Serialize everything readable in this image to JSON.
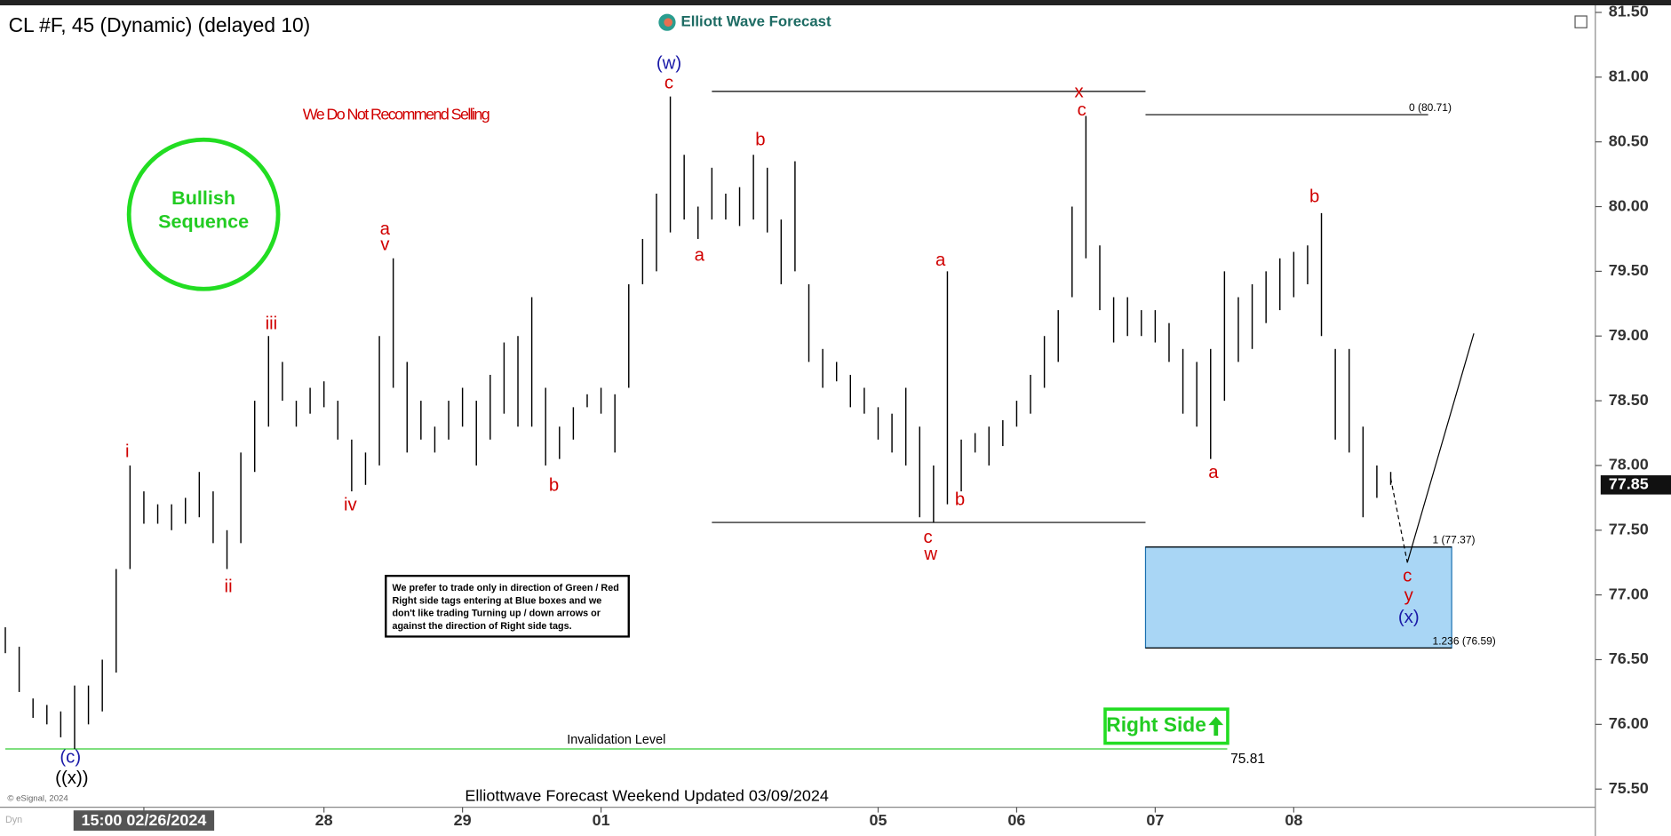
{
  "chart_data": {
    "type": "ohlc",
    "title": "CL #F, 45 (Dynamic) (delayed 10)",
    "watermark": "Elliott Wave Forecast",
    "warning": "We Do Not Recommend Selling",
    "badge": [
      "Bullish",
      "Sequence"
    ],
    "note": "We prefer to trade only in direction of Green / Red Right side tags entering at Blue boxes and we don't like trading Turning up / down arrows or against the direction of Right side tags.",
    "right_side_tag": "Right Side",
    "footer": "Elliottwave Forecast Weekend Updated 03/09/2024",
    "copyright": "© eSignal, 2024",
    "corner": "Dyn",
    "color": "#000000",
    "high": [
      76.75,
      76.6,
      76.2,
      76.15,
      76.1,
      76.3,
      76.3,
      76.5,
      77.2,
      78.0,
      77.8,
      77.7,
      77.7,
      77.75,
      77.95,
      77.8,
      77.5,
      78.1,
      78.5,
      79.0,
      78.8,
      78.5,
      78.6,
      78.65,
      78.5,
      78.2,
      78.1,
      79.0,
      79.6,
      78.8,
      78.5,
      78.3,
      78.5,
      78.6,
      78.5,
      78.7,
      78.95,
      79.0,
      79.3,
      78.6,
      78.3,
      78.45,
      78.55,
      78.6,
      78.55,
      79.4,
      79.75,
      80.1,
      80.85,
      80.4,
      80.0,
      80.3,
      80.1,
      80.15,
      80.4,
      80.3,
      79.9,
      80.35,
      79.4,
      78.9,
      78.8,
      78.7,
      78.6,
      78.45,
      78.4,
      78.6,
      78.3,
      78.0,
      79.5,
      78.2,
      78.25,
      78.3,
      78.35,
      78.5,
      78.7,
      79.0,
      79.2,
      80.0,
      80.7,
      79.7,
      79.3,
      79.3,
      79.2,
      79.2,
      79.1,
      78.9,
      78.8,
      78.9,
      79.5,
      79.3,
      79.4,
      79.5,
      79.6,
      79.65,
      79.7,
      79.95,
      78.9,
      78.9,
      78.3,
      78.0,
      77.95
    ],
    "low": [
      76.55,
      76.25,
      76.05,
      76.0,
      75.9,
      75.81,
      76.0,
      76.1,
      76.4,
      77.2,
      77.55,
      77.55,
      77.5,
      77.55,
      77.6,
      77.4,
      77.2,
      77.4,
      77.95,
      78.3,
      78.5,
      78.3,
      78.4,
      78.45,
      78.2,
      77.8,
      77.85,
      78.0,
      78.6,
      78.1,
      78.2,
      78.1,
      78.2,
      78.3,
      78.0,
      78.2,
      78.4,
      78.3,
      78.3,
      78.0,
      78.05,
      78.2,
      78.45,
      78.4,
      78.1,
      78.6,
      79.4,
      79.5,
      79.8,
      79.9,
      79.75,
      79.9,
      79.9,
      79.85,
      79.9,
      79.8,
      79.4,
      79.5,
      78.8,
      78.6,
      78.65,
      78.45,
      78.4,
      78.2,
      78.1,
      78.0,
      77.6,
      77.56,
      77.7,
      77.8,
      78.1,
      78.0,
      78.15,
      78.3,
      78.4,
      78.6,
      78.8,
      79.3,
      79.6,
      79.2,
      78.95,
      79.0,
      79.0,
      78.95,
      78.8,
      78.4,
      78.3,
      78.05,
      78.5,
      78.8,
      78.9,
      79.1,
      79.2,
      79.3,
      79.4,
      79.0,
      78.2,
      78.1,
      77.6,
      77.75,
      77.85
    ],
    "last_price": 77.85,
    "xlim": [
      0,
      115
    ],
    "xticks": [
      {
        "value": 10,
        "label": "15:00 02/26/2024"
      },
      {
        "value": 23,
        "label": "28"
      },
      {
        "value": 33,
        "label": "29"
      },
      {
        "value": 43,
        "label": "01"
      },
      {
        "value": 63,
        "label": "05"
      },
      {
        "value": 73,
        "label": "06"
      },
      {
        "value": 83,
        "label": "07"
      },
      {
        "value": 93,
        "label": "08"
      }
    ],
    "ylim": [
      75.36,
      81.53
    ],
    "yticks": [
      {
        "value": 75.5,
        "label": "75.50"
      },
      {
        "value": 76.0,
        "label": "76.00"
      },
      {
        "value": 76.5,
        "label": "76.50"
      },
      {
        "value": 77.0,
        "label": "77.00"
      },
      {
        "value": 77.5,
        "label": "77.50"
      },
      {
        "value": 78.0,
        "label": "78.00"
      },
      {
        "value": 78.5,
        "label": "78.50"
      },
      {
        "value": 79.0,
        "label": "79.00"
      },
      {
        "value": 79.5,
        "label": "79.50"
      },
      {
        "value": 80.0,
        "label": "80.00"
      },
      {
        "value": 80.5,
        "label": "80.50"
      },
      {
        "value": 81.0,
        "label": "81.00"
      },
      {
        "value": 81.5,
        "label": "81.50"
      }
    ],
    "range_lines": [
      {
        "value": 80.89,
        "x": [
          51,
          82.3
        ]
      },
      {
        "value": 77.56,
        "x": [
          51,
          82.3
        ]
      }
    ],
    "fib_levels": [
      {
        "value": 80.71,
        "label": "0 (80.71)",
        "x": [
          82.3,
          102.7
        ]
      },
      {
        "value": 77.37,
        "label": "1 (77.37)",
        "x": [
          82.3,
          104.4
        ]
      },
      {
        "value": 76.59,
        "label": "1.236 (76.59)",
        "x": [
          82.3,
          104.4
        ]
      }
    ],
    "box": {
      "top": 77.37,
      "bottom": 76.59,
      "x": [
        82.3,
        104.4
      ],
      "color": "#a9d6f5"
    },
    "invalidation": {
      "value": 75.81,
      "label": "Invalidation Level",
      "x": [
        0,
        88.2
      ],
      "color": "#33cc33"
    },
    "projection": {
      "x": [
        100,
        101.2,
        106
      ],
      "y": [
        77.9,
        77.25,
        79.02
      ]
    },
    "annotations": [
      {
        "text": "(w)",
        "x": 47.9,
        "y": 81.1,
        "color": "#1a1aa8"
      },
      {
        "text": "c",
        "x": 47.9,
        "y": 80.95,
        "color": "#d00000"
      },
      {
        "text": "x",
        "x": 77.5,
        "y": 80.88,
        "color": "#d00000"
      },
      {
        "text": "c",
        "x": 77.7,
        "y": 80.74,
        "color": "#d00000"
      },
      {
        "text": "b",
        "x": 54.5,
        "y": 80.51,
        "color": "#d00000"
      },
      {
        "text": "a",
        "x": 27.4,
        "y": 79.82,
        "color": "#d00000"
      },
      {
        "text": "v",
        "x": 27.4,
        "y": 79.7,
        "color": "#d00000"
      },
      {
        "text": "iii",
        "x": 19.2,
        "y": 79.09,
        "color": "#d00000"
      },
      {
        "text": "a",
        "x": 50.1,
        "y": 79.62,
        "color": "#d00000"
      },
      {
        "text": "a",
        "x": 67.5,
        "y": 79.58,
        "color": "#d00000"
      },
      {
        "text": "b",
        "x": 94.5,
        "y": 80.07,
        "color": "#d00000"
      },
      {
        "text": "i",
        "x": 8.8,
        "y": 78.1,
        "color": "#d00000"
      },
      {
        "text": "iv",
        "x": 24.9,
        "y": 77.69,
        "color": "#d00000"
      },
      {
        "text": "b",
        "x": 39.6,
        "y": 77.84,
        "color": "#d00000"
      },
      {
        "text": "ii",
        "x": 16.1,
        "y": 77.06,
        "color": "#d00000"
      },
      {
        "text": "b",
        "x": 68.9,
        "y": 77.73,
        "color": "#d00000"
      },
      {
        "text": "a",
        "x": 87.2,
        "y": 77.94,
        "color": "#d00000"
      },
      {
        "text": "c",
        "x": 66.6,
        "y": 77.44,
        "color": "#d00000"
      },
      {
        "text": "w",
        "x": 66.8,
        "y": 77.31,
        "color": "#d00000"
      },
      {
        "text": "c",
        "x": 101.2,
        "y": 77.14,
        "color": "#d00000"
      },
      {
        "text": "y",
        "x": 101.3,
        "y": 76.99,
        "color": "#d00000"
      },
      {
        "text": "(x)",
        "x": 101.3,
        "y": 76.82,
        "color": "#1a1aa8"
      },
      {
        "text": "(c)",
        "x": 4.7,
        "y": 75.74,
        "color": "#1a1aa8"
      },
      {
        "text": "((x))",
        "x": 4.8,
        "y": 75.58,
        "color": "#000000"
      }
    ]
  }
}
